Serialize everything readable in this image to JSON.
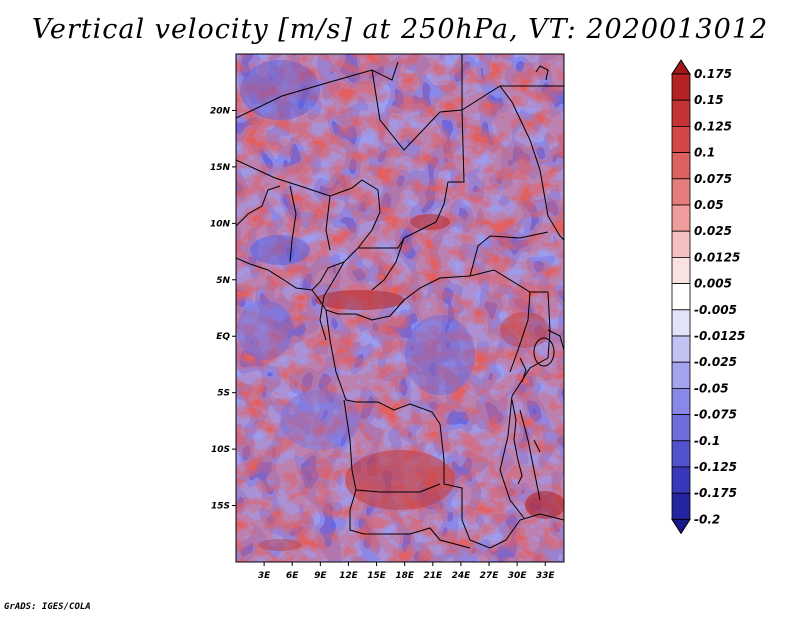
{
  "title": "Vertical velocity [m/s] at 250hPa, VT: 2020013012",
  "credit": "GrADS: IGES/COLA",
  "map": {
    "lon_range": [
      0,
      35
    ],
    "lat_range": [
      -20,
      25
    ],
    "lat_ticks": [
      {
        "value": 20,
        "label": "20N"
      },
      {
        "value": 15,
        "label": "15N"
      },
      {
        "value": 10,
        "label": "10N"
      },
      {
        "value": 5,
        "label": "5N"
      },
      {
        "value": 0,
        "label": "EQ"
      },
      {
        "value": -5,
        "label": "5S"
      },
      {
        "value": -10,
        "label": "10S"
      },
      {
        "value": -15,
        "label": "15S"
      }
    ],
    "lon_ticks": [
      {
        "value": 3,
        "label": "3E"
      },
      {
        "value": 6,
        "label": "6E"
      },
      {
        "value": 9,
        "label": "9E"
      },
      {
        "value": 12,
        "label": "12E"
      },
      {
        "value": 15,
        "label": "15E"
      },
      {
        "value": 18,
        "label": "18E"
      },
      {
        "value": 21,
        "label": "21E"
      },
      {
        "value": 24,
        "label": "24E"
      },
      {
        "value": 27,
        "label": "27E"
      },
      {
        "value": 30,
        "label": "30E"
      },
      {
        "value": 33,
        "label": "33E"
      }
    ]
  },
  "colorbar": {
    "units": "m/s",
    "labels": [
      "0.175",
      "0.15",
      "0.125",
      "0.1",
      "0.075",
      "0.05",
      "0.025",
      "0.0125",
      "0.005",
      "-0.005",
      "-0.0125",
      "-0.025",
      "-0.05",
      "-0.075",
      "-0.1",
      "-0.125",
      "-0.175",
      "-0.2"
    ],
    "colors": [
      "#a01818",
      "#b52222",
      "#c53434",
      "#d24848",
      "#dc6161",
      "#e67d7d",
      "#ee9c9c",
      "#f5c0c0",
      "#fbe2e2",
      "#ffffff",
      "#e2e2fb",
      "#c2c2f4",
      "#a4a4ee",
      "#8888e6",
      "#6d6ddc",
      "#5252ce",
      "#3838bb",
      "#2424a0",
      "#181888"
    ]
  }
}
